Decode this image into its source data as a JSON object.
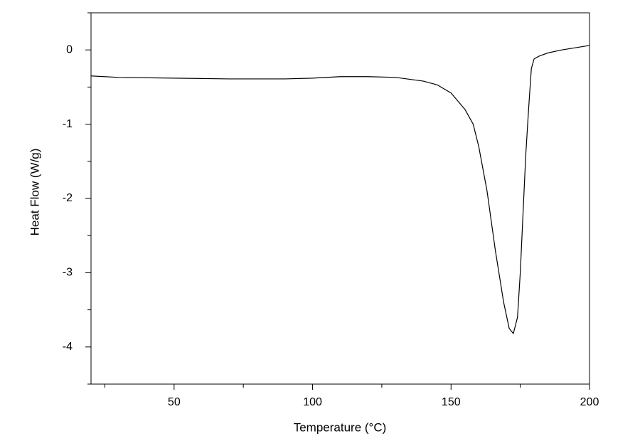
{
  "chart_data": {
    "type": "line",
    "x_label": "Temperature (°C)",
    "y_label": "Heat Flow (W/g)",
    "xlim": [
      20,
      200
    ],
    "ylim": [
      -4.5,
      0.5
    ],
    "xticks": [
      50,
      100,
      150,
      200
    ],
    "yticks": [
      0,
      -1,
      -2,
      -3,
      -4
    ],
    "xticks_minor": [
      25,
      75,
      125,
      175
    ],
    "yticks_minor": [
      0.5,
      -0.5,
      -1.5,
      -2.5,
      -3.5,
      -4.5
    ],
    "color": "#000000",
    "x": [
      20,
      30,
      50,
      70,
      90,
      100,
      110,
      120,
      130,
      140,
      145,
      150,
      155,
      158,
      160,
      163,
      166,
      169,
      171,
      172.5,
      174,
      175,
      176,
      177,
      178,
      179,
      180,
      182,
      185,
      190,
      195,
      200
    ],
    "values": [
      -0.35,
      -0.37,
      -0.38,
      -0.39,
      -0.39,
      -0.38,
      -0.36,
      -0.36,
      -0.37,
      -0.42,
      -0.47,
      -0.58,
      -0.8,
      -1.0,
      -1.3,
      -1.9,
      -2.7,
      -3.4,
      -3.75,
      -3.82,
      -3.6,
      -3.0,
      -2.2,
      -1.4,
      -0.8,
      -0.25,
      -0.12,
      -0.08,
      -0.04,
      0.0,
      0.03,
      0.06
    ]
  }
}
